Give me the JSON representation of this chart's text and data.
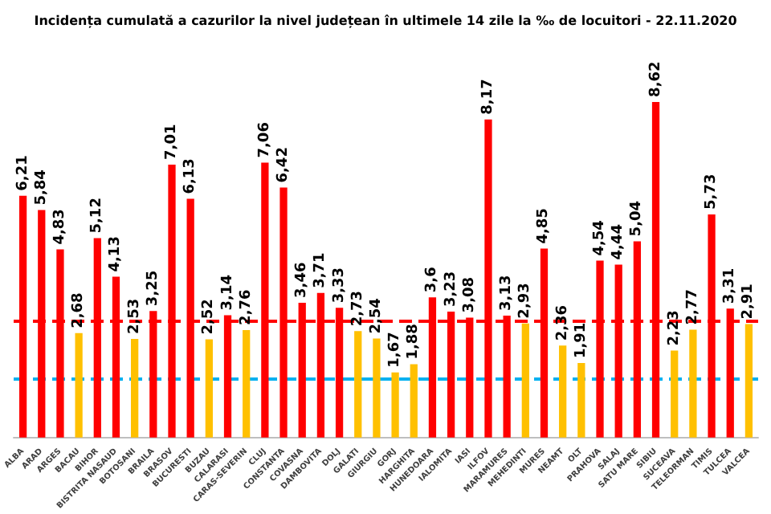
{
  "chart_data": {
    "type": "bar",
    "title": "Incidența cumulată a cazurilor la nivel județean în ultimele 14 zile la ‰ de locuitori - 22.11.2020",
    "categories": [
      "ALBA",
      "ARAD",
      "ARGES",
      "BACAU",
      "BIHOR",
      "BISTRITA NASAUD",
      "BOTOSANI",
      "BRAILA",
      "BRASOV",
      "BUCURESTI",
      "BUZAU",
      "CALARASI",
      "CARAS-SEVERIN",
      "CLUJ",
      "CONSTANTA",
      "COVASNA",
      "DAMBOVITA",
      "DOLJ",
      "GALATI",
      "GIURGIU",
      "GORJ",
      "HARGHITA",
      "HUNEDOARA",
      "IALOMITA",
      "IASI",
      "ILFOV",
      "MARAMURES",
      "MEHEDINTI",
      "MURES",
      "NEAMT",
      "OLT",
      "PRAHOVA",
      "SALAJ",
      "SATU MARE",
      "SIBIU",
      "SUCEAVA",
      "TELEORMAN",
      "TIMIS",
      "TULCEA",
      "VALCEA"
    ],
    "values": [
      6.21,
      5.84,
      4.83,
      2.68,
      5.12,
      4.13,
      2.53,
      3.25,
      7.01,
      6.13,
      2.52,
      3.14,
      2.76,
      7.06,
      6.42,
      3.46,
      3.71,
      3.33,
      2.73,
      2.54,
      1.67,
      1.88,
      3.6,
      3.23,
      3.08,
      8.17,
      3.13,
      2.93,
      4.85,
      2.36,
      1.91,
      4.54,
      4.44,
      5.04,
      8.62,
      2.23,
      2.77,
      5.73,
      3.31,
      2.91
    ],
    "value_labels": [
      "6,21",
      "5,84",
      "4,83",
      "2,68",
      "5,12",
      "4,13",
      "2,53",
      "3,25",
      "7,01",
      "6,13",
      "2,52",
      "3,14",
      "2,76",
      "7,06",
      "6,42",
      "3,46",
      "3,71",
      "3,33",
      "2,73",
      "2,54",
      "1,67",
      "1,88",
      "3,6",
      "3,23",
      "3,08",
      "8,17",
      "3,13",
      "2,93",
      "4,85",
      "2,36",
      "1,91",
      "4,54",
      "4,44",
      "5,04",
      "8,62",
      "2,23",
      "2,77",
      "5,73",
      "3,31",
      "2,91"
    ],
    "colors": [
      "#ff0000",
      "#ff0000",
      "#ff0000",
      "#ffc000",
      "#ff0000",
      "#ff0000",
      "#ffc000",
      "#ff0000",
      "#ff0000",
      "#ff0000",
      "#ffc000",
      "#ff0000",
      "#ffc000",
      "#ff0000",
      "#ff0000",
      "#ff0000",
      "#ff0000",
      "#ff0000",
      "#ffc000",
      "#ffc000",
      "#ffc000",
      "#ffc000",
      "#ff0000",
      "#ff0000",
      "#ff0000",
      "#ff0000",
      "#ff0000",
      "#ffc000",
      "#ff0000",
      "#ffc000",
      "#ffc000",
      "#ff0000",
      "#ff0000",
      "#ff0000",
      "#ff0000",
      "#ffc000",
      "#ffc000",
      "#ff0000",
      "#ff0000",
      "#ffc000"
    ],
    "ref_lines": [
      {
        "axis": "y",
        "value": 3,
        "color": "#ff0000",
        "line_style": "dashed"
      },
      {
        "axis": "y",
        "value": 1.5,
        "color": "#00b0f0",
        "line_style": "dashed"
      }
    ]
  }
}
